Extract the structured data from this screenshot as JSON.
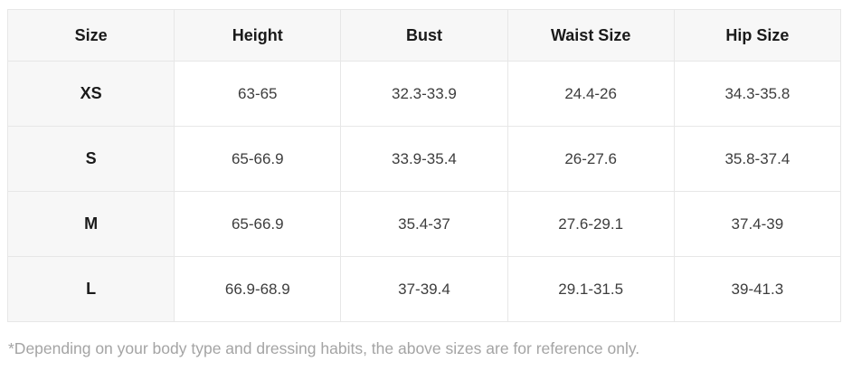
{
  "size_chart": {
    "columns": [
      "Size",
      "Height",
      "Bust",
      "Waist Size",
      "Hip Size"
    ],
    "rows": [
      [
        "XS",
        "63-65",
        "32.3-33.9",
        "24.4-26",
        "34.3-35.8"
      ],
      [
        "S",
        "65-66.9",
        "33.9-35.4",
        "26-27.6",
        "35.8-37.4"
      ],
      [
        "M",
        "65-66.9",
        "35.4-37",
        "27.6-29.1",
        "37.4-39"
      ],
      [
        "L",
        "66.9-68.9",
        "37-39.4",
        "29.1-31.5",
        "39-41.3"
      ]
    ],
    "footnote": "*Depending on your body type and dressing habits, the above sizes are for reference only."
  },
  "colors": {
    "header_bg": "#f7f7f7",
    "cell_bg": "#ffffff",
    "border": "#e7e7e7",
    "header_text": "#1a1a1a",
    "cell_text": "#3d3d3d",
    "footnote_text": "#a4a4a4"
  }
}
